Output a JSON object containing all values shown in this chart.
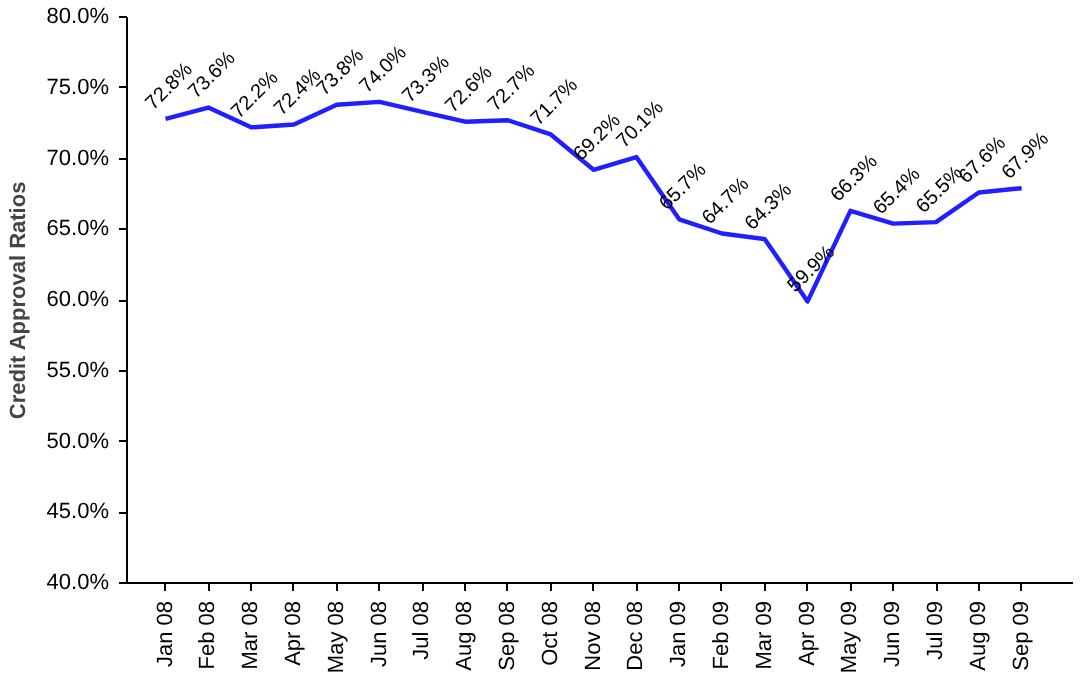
{
  "chart_data": {
    "type": "line",
    "ylabel": "Credit Approval Ratios",
    "categories": [
      "Jan 08",
      "Feb 08",
      "Mar 08",
      "Apr 08",
      "May 08",
      "Jun 08",
      "Jul 08",
      "Aug 08",
      "Sep 08",
      "Oct 08",
      "Nov 08",
      "Dec 08",
      "Jan 09",
      "Feb 09",
      "Mar 09",
      "Apr 09",
      "May 09",
      "Jun 09",
      "Jul 09",
      "Aug 09",
      "Sep 09"
    ],
    "series": [
      {
        "color": "#1f1fff",
        "values": [
          72.8,
          73.6,
          72.2,
          72.4,
          73.8,
          74.0,
          73.3,
          72.6,
          72.7,
          71.7,
          69.2,
          70.1,
          65.7,
          64.7,
          64.3,
          59.9,
          66.3,
          65.4,
          65.5,
          67.6,
          67.9
        ],
        "value_labels": [
          "72.8%",
          "73.6%",
          "72.2%",
          "72.4%",
          "73.8%",
          "74.0%",
          "73.3%",
          "72.6%",
          "72.7%",
          "71.7%",
          "69.2%",
          "70.1%",
          "65.7%",
          "64.7%",
          "64.3%",
          "59.9%",
          "66.3%",
          "65.4%",
          "65.5%",
          "67.6%",
          "67.9%"
        ]
      }
    ],
    "ylim": [
      40,
      80
    ],
    "yticks": [
      {
        "value": 40,
        "label": "40.0%"
      },
      {
        "value": 45,
        "label": "45.0%"
      },
      {
        "value": 50,
        "label": "50.0%"
      },
      {
        "value": 55,
        "label": "55.0%"
      },
      {
        "value": 60,
        "label": "60.0%"
      },
      {
        "value": 65,
        "label": "65.0%"
      },
      {
        "value": 70,
        "label": "70.0%"
      },
      {
        "value": 75,
        "label": "75.0%"
      },
      {
        "value": 80,
        "label": "80.0%"
      }
    ],
    "grid": false,
    "marker": "none",
    "line_style": "solid"
  }
}
